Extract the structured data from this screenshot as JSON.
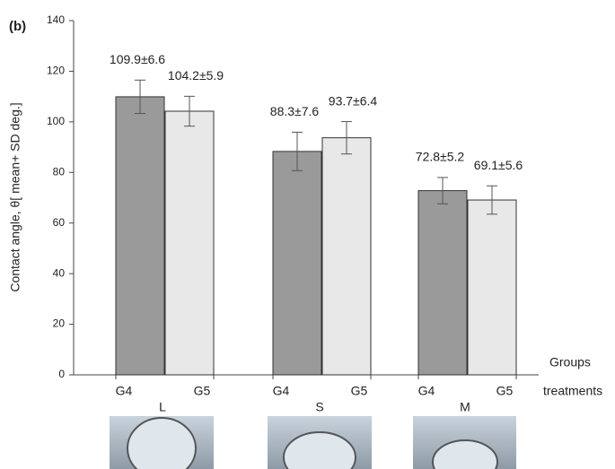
{
  "chart_data": {
    "type": "bar",
    "panel_label": "(b)",
    "y_label": "Contact angle, θ[ mean+ SD deg.]",
    "x_label_top": "Groups",
    "x_label_bottom": "treatments",
    "categories": [
      "L",
      "S",
      "M"
    ],
    "series": [
      {
        "name": "G4",
        "color": "#9a9a9a",
        "values": [
          109.9,
          88.3,
          72.8
        ],
        "errors": [
          6.6,
          7.6,
          5.2
        ],
        "value_labels": [
          "109.9±6.6",
          "88.3±7.6",
          "72.8±5.2"
        ]
      },
      {
        "name": "G5",
        "color": "#e8e8e8",
        "values": [
          104.2,
          93.7,
          69.1
        ],
        "errors": [
          5.9,
          6.4,
          5.6
        ],
        "value_labels": [
          "104.2±5.9",
          "93.7±6.4",
          "69.1±5.6"
        ]
      }
    ],
    "ylim": [
      0,
      140
    ],
    "yticks": [
      0,
      20,
      40,
      60,
      80,
      100,
      120,
      140
    ],
    "grid": false
  }
}
